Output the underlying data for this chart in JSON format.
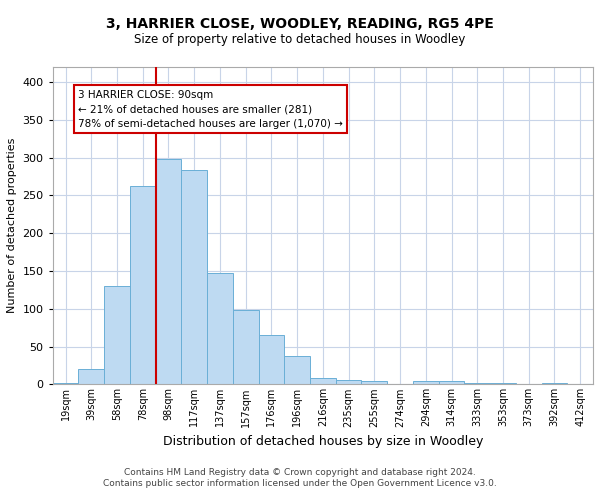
{
  "title": "3, HARRIER CLOSE, WOODLEY, READING, RG5 4PE",
  "subtitle": "Size of property relative to detached houses in Woodley",
  "xlabel": "Distribution of detached houses by size in Woodley",
  "ylabel": "Number of detached properties",
  "bar_labels": [
    "19sqm",
    "39sqm",
    "58sqm",
    "78sqm",
    "98sqm",
    "117sqm",
    "137sqm",
    "157sqm",
    "176sqm",
    "196sqm",
    "216sqm",
    "235sqm",
    "255sqm",
    "274sqm",
    "294sqm",
    "314sqm",
    "333sqm",
    "353sqm",
    "373sqm",
    "392sqm",
    "412sqm"
  ],
  "bar_values": [
    2,
    20,
    130,
    263,
    298,
    284,
    147,
    98,
    65,
    38,
    8,
    6,
    4,
    0,
    5,
    4,
    2,
    2,
    0,
    2,
    0
  ],
  "bar_color": "#bedaf2",
  "bar_edge_color": "#6aafd6",
  "vline_color": "#cc0000",
  "annotation_line1": "3 HARRIER CLOSE: 90sqm",
  "annotation_line2": "← 21% of detached houses are smaller (281)",
  "annotation_line3": "78% of semi-detached houses are larger (1,070) →",
  "annotation_box_color": "#ffffff",
  "annotation_box_edge": "#cc0000",
  "ylim": [
    0,
    420
  ],
  "yticks": [
    0,
    50,
    100,
    150,
    200,
    250,
    300,
    350,
    400
  ],
  "footer_line1": "Contains HM Land Registry data © Crown copyright and database right 2024.",
  "footer_line2": "Contains public sector information licensed under the Open Government Licence v3.0.",
  "bg_color": "#ffffff",
  "grid_color": "#c8d4e8",
  "title_fontsize": 10,
  "subtitle_fontsize": 8.5,
  "ylabel_fontsize": 8,
  "xlabel_fontsize": 9,
  "tick_fontsize": 7,
  "footer_fontsize": 6.5
}
